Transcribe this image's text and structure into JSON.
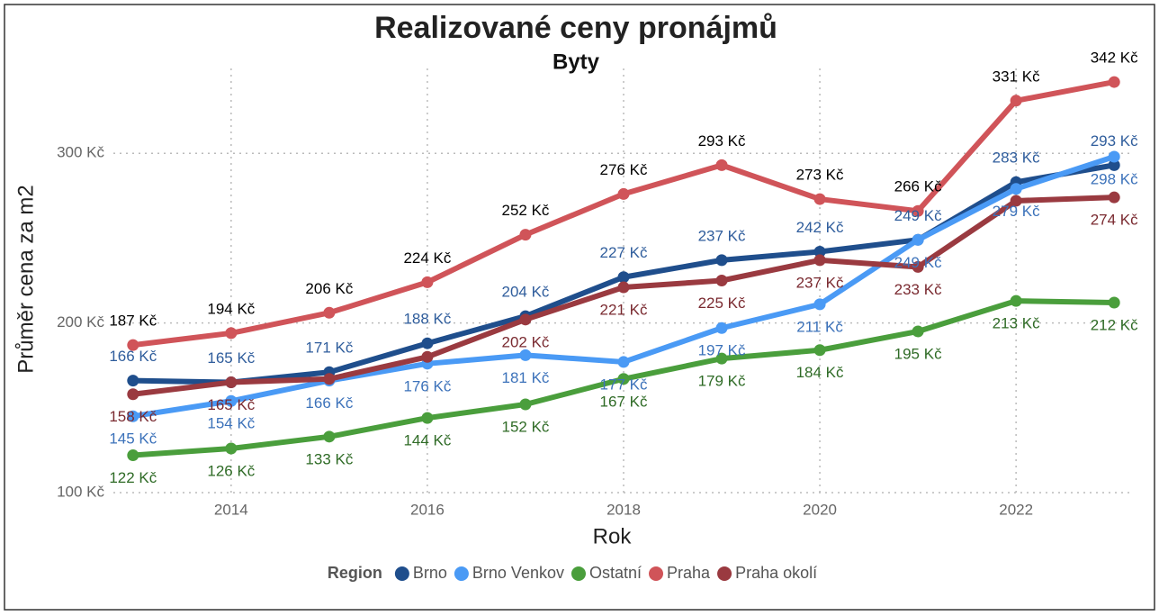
{
  "chart_data": {
    "type": "line",
    "title": "Realizované ceny pronájmů",
    "subtitle": "Byty",
    "x_label": "Rok",
    "y_label": "Průměr cena za m2",
    "legend_title": "Region",
    "legend_position": "bottom",
    "grid": true,
    "x": [
      2013,
      2014,
      2015,
      2016,
      2017,
      2018,
      2019,
      2020,
      2021,
      2022,
      2023
    ],
    "xlim": [
      2012.8,
      2023.2
    ],
    "xticks": [
      2014,
      2016,
      2018,
      2020,
      2022
    ],
    "ylim": [
      100,
      350
    ],
    "yticks": [
      {
        "value": 100,
        "label": "100 Kč"
      },
      {
        "value": 200,
        "label": "200 Kč"
      },
      {
        "value": 300,
        "label": "300 Kč"
      }
    ],
    "series": [
      {
        "name": "Brno",
        "color": "#1f4e8c",
        "label_color": "#2f5d9c",
        "values": [
          166,
          165,
          171,
          188,
          204,
          227,
          237,
          242,
          249,
          283,
          293
        ],
        "value_labels": [
          "166 Kč",
          "165 Kč",
          "171 Kč",
          "188 Kč",
          "204 Kč",
          "227 Kč",
          "237 Kč",
          "242 Kč",
          "249 Kč",
          "283 Kč",
          "293 Kč"
        ]
      },
      {
        "name": "Brno Venkov",
        "color": "#4a9af5",
        "label_color": "#3c72ba",
        "values": [
          145,
          154,
          166,
          176,
          181,
          177,
          197,
          211,
          249,
          279,
          298
        ],
        "value_labels": [
          "145 Kč",
          "154 Kč",
          "166 Kč",
          "176 Kč",
          "181 Kč",
          "177 Kč",
          "197 Kč",
          "211 Kč",
          "249 Kč",
          "279 Kč",
          "298 Kč"
        ]
      },
      {
        "name": "Ostatní",
        "color": "#4a9e3c",
        "label_color": "#2f6b26",
        "values": [
          122,
          126,
          133,
          144,
          152,
          167,
          179,
          184,
          195,
          213,
          212
        ],
        "value_labels": [
          "122 Kč",
          "126 Kč",
          "133 Kč",
          "144 Kč",
          "152 Kč",
          "167 Kč",
          "179 Kč",
          "184 Kč",
          "195 Kč",
          "213 Kč",
          "212 Kč"
        ]
      },
      {
        "name": "Praha",
        "color": "#d05459",
        "label_color": "#000000",
        "values": [
          187,
          194,
          206,
          224,
          252,
          276,
          293,
          273,
          266,
          331,
          342
        ],
        "value_labels": [
          "187 Kč",
          "194 Kč",
          "206 Kč",
          "224 Kč",
          "252 Kč",
          "276 Kč",
          "293 Kč",
          "273 Kč",
          "266 Kč",
          "331 Kč",
          "342 Kč"
        ]
      },
      {
        "name": "Praha okolí",
        "color": "#9a3a40",
        "label_color": "#7a2a30",
        "values": [
          158,
          165,
          167,
          180,
          202,
          221,
          225,
          237,
          233,
          272,
          274
        ],
        "value_labels": [
          "158 Kč",
          "165 Kč",
          null,
          null,
          "202 Kč",
          "221 Kč",
          "225 Kč",
          "237 Kč",
          "233 Kč",
          null,
          "274 Kč"
        ]
      }
    ]
  }
}
